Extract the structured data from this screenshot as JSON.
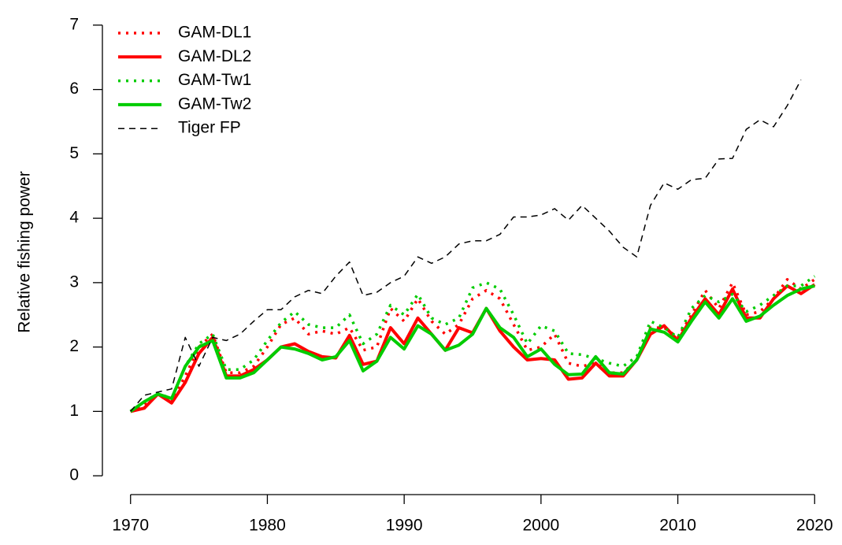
{
  "chart_data": {
    "type": "line",
    "ylabel": "Relative fishing power",
    "x": [
      1970,
      1971,
      1972,
      1973,
      1974,
      1975,
      1976,
      1977,
      1978,
      1979,
      1980,
      1981,
      1982,
      1983,
      1984,
      1985,
      1986,
      1987,
      1988,
      1989,
      1990,
      1991,
      1992,
      1993,
      1994,
      1995,
      1996,
      1997,
      1998,
      1999,
      2000,
      2001,
      2002,
      2003,
      2004,
      2005,
      2006,
      2007,
      2008,
      2009,
      2010,
      2011,
      2012,
      2013,
      2014,
      2015,
      2016,
      2017,
      2018,
      2019,
      2020
    ],
    "xlim": [
      1968,
      2022
    ],
    "xticks": [
      1970,
      1980,
      1990,
      2000,
      2010,
      2020
    ],
    "ylim": [
      -0.28,
      7.28
    ],
    "yticks": [
      0,
      1,
      2,
      3,
      4,
      5,
      6,
      7
    ],
    "legend": "top-left",
    "series": [
      {
        "name": "GAM-DL1",
        "color": "#ff0000",
        "dash": "dotted",
        "values": [
          1.0,
          1.1,
          1.27,
          1.15,
          1.55,
          2.0,
          2.2,
          1.6,
          1.6,
          1.7,
          2.0,
          2.35,
          2.45,
          2.2,
          2.25,
          2.2,
          2.3,
          1.95,
          2.0,
          2.6,
          2.4,
          2.75,
          2.4,
          2.2,
          2.35,
          2.75,
          2.88,
          2.75,
          2.35,
          1.95,
          2.0,
          2.2,
          1.75,
          1.7,
          1.75,
          1.6,
          1.6,
          1.8,
          2.3,
          2.3,
          2.15,
          2.5,
          2.88,
          2.6,
          3.0,
          2.5,
          2.55,
          2.75,
          3.05,
          2.9,
          3.05
        ]
      },
      {
        "name": "GAM-DL2",
        "color": "#ff0000",
        "dash": "solid",
        "values": [
          1.0,
          1.05,
          1.27,
          1.13,
          1.45,
          1.9,
          2.15,
          1.55,
          1.55,
          1.65,
          1.8,
          2.0,
          2.05,
          1.93,
          1.85,
          1.83,
          2.18,
          1.73,
          1.78,
          2.3,
          2.05,
          2.45,
          2.2,
          1.95,
          2.3,
          2.22,
          2.6,
          2.25,
          2.0,
          1.8,
          1.82,
          1.8,
          1.5,
          1.52,
          1.75,
          1.55,
          1.55,
          1.8,
          2.2,
          2.33,
          2.1,
          2.45,
          2.75,
          2.5,
          2.9,
          2.45,
          2.45,
          2.75,
          2.95,
          2.83,
          2.97
        ]
      },
      {
        "name": "GAM-Tw1",
        "color": "#00cc00",
        "dash": "dotted",
        "values": [
          1.0,
          1.15,
          1.28,
          1.2,
          1.7,
          2.05,
          2.2,
          1.65,
          1.65,
          1.8,
          2.1,
          2.38,
          2.55,
          2.35,
          2.3,
          2.3,
          2.5,
          2.05,
          2.2,
          2.65,
          2.5,
          2.82,
          2.45,
          2.35,
          2.45,
          2.92,
          3.0,
          2.9,
          2.5,
          2.05,
          2.33,
          2.25,
          1.9,
          1.88,
          1.82,
          1.75,
          1.7,
          1.85,
          2.4,
          2.3,
          2.15,
          2.6,
          2.8,
          2.7,
          2.82,
          2.55,
          2.65,
          2.8,
          2.95,
          2.95,
          3.1
        ]
      },
      {
        "name": "GAM-Tw2",
        "color": "#00cc00",
        "dash": "solid",
        "values": [
          1.0,
          1.15,
          1.27,
          1.2,
          1.7,
          2.0,
          2.1,
          1.52,
          1.52,
          1.6,
          1.8,
          2.0,
          1.97,
          1.9,
          1.8,
          1.85,
          2.1,
          1.63,
          1.78,
          2.15,
          1.97,
          2.33,
          2.2,
          1.95,
          2.03,
          2.2,
          2.6,
          2.3,
          2.15,
          1.85,
          1.97,
          1.73,
          1.57,
          1.58,
          1.85,
          1.6,
          1.58,
          1.8,
          2.28,
          2.23,
          2.08,
          2.4,
          2.7,
          2.45,
          2.75,
          2.4,
          2.48,
          2.65,
          2.8,
          2.9,
          2.95
        ]
      },
      {
        "name": "Tiger FP",
        "color": "#000000",
        "dash": "dashed",
        "values": [
          1.0,
          1.25,
          1.3,
          1.35,
          2.15,
          1.7,
          2.15,
          2.1,
          2.2,
          2.4,
          2.58,
          2.58,
          2.78,
          2.88,
          2.83,
          3.1,
          3.32,
          2.8,
          2.85,
          3.0,
          3.1,
          3.4,
          3.3,
          3.4,
          3.6,
          3.65,
          3.65,
          3.75,
          4.02,
          4.02,
          4.05,
          4.15,
          3.97,
          4.2,
          4.0,
          3.8,
          3.55,
          3.4,
          4.2,
          4.55,
          4.45,
          4.6,
          4.62,
          4.92,
          4.93,
          5.38,
          5.53,
          5.42,
          5.75,
          6.15,
          null
        ]
      }
    ]
  }
}
